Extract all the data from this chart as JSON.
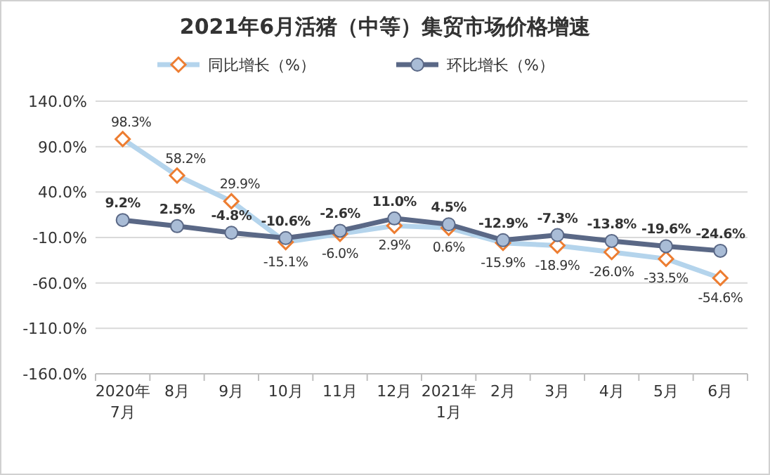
{
  "chart_data": {
    "type": "line",
    "title": "2021年6月活猪（中等）集贸市场价格增速",
    "categories": [
      "2020年\n7月",
      "8月",
      "9月",
      "10月",
      "11月",
      "12月",
      "2021年\n1月",
      "2月",
      "3月",
      "4月",
      "5月",
      "6月"
    ],
    "series": [
      {
        "name": "同比增长（%）",
        "color": "#b4d4ec",
        "marker": "diamond",
        "values": [
          98.3,
          58.2,
          29.9,
          -15.1,
          -6.0,
          2.9,
          0.6,
          -15.9,
          -18.9,
          -26.0,
          -33.5,
          -54.6
        ],
        "value_labels": [
          "98.3%",
          "58.2%",
          "29.9%",
          "-15.1%",
          "-6.0%",
          "2.9%",
          "0.6%",
          "-15.9%",
          "-18.9%",
          "-26.0%",
          "-33.5%",
          "-54.6%"
        ]
      },
      {
        "name": "环比增长（%）",
        "color": "#5a6886",
        "marker": "circle",
        "values": [
          9.2,
          2.5,
          -4.8,
          -10.6,
          -2.6,
          11.0,
          4.5,
          -12.9,
          -7.3,
          -13.8,
          -19.6,
          -24.6
        ],
        "value_labels": [
          "9.2%",
          "2.5%",
          "-4.8%",
          "-10.6%",
          "-2.6%",
          "11.0%",
          "4.5%",
          "-12.9%",
          "-7.3%",
          "-13.8%",
          "-19.6%",
          "-24.6%"
        ]
      }
    ],
    "ylim": [
      -160,
      140
    ],
    "yticks": [
      {
        "value": 140,
        "label": "140.0%"
      },
      {
        "value": 90,
        "label": "90.0%"
      },
      {
        "value": 40,
        "label": "40.0%"
      },
      {
        "value": -10,
        "label": "-10.0%"
      },
      {
        "value": -60,
        "label": "-60.0%"
      },
      {
        "value": -110,
        "label": "-110.0%"
      },
      {
        "value": -160,
        "label": "-160.0%"
      }
    ],
    "grid": "y",
    "legend": "top"
  }
}
